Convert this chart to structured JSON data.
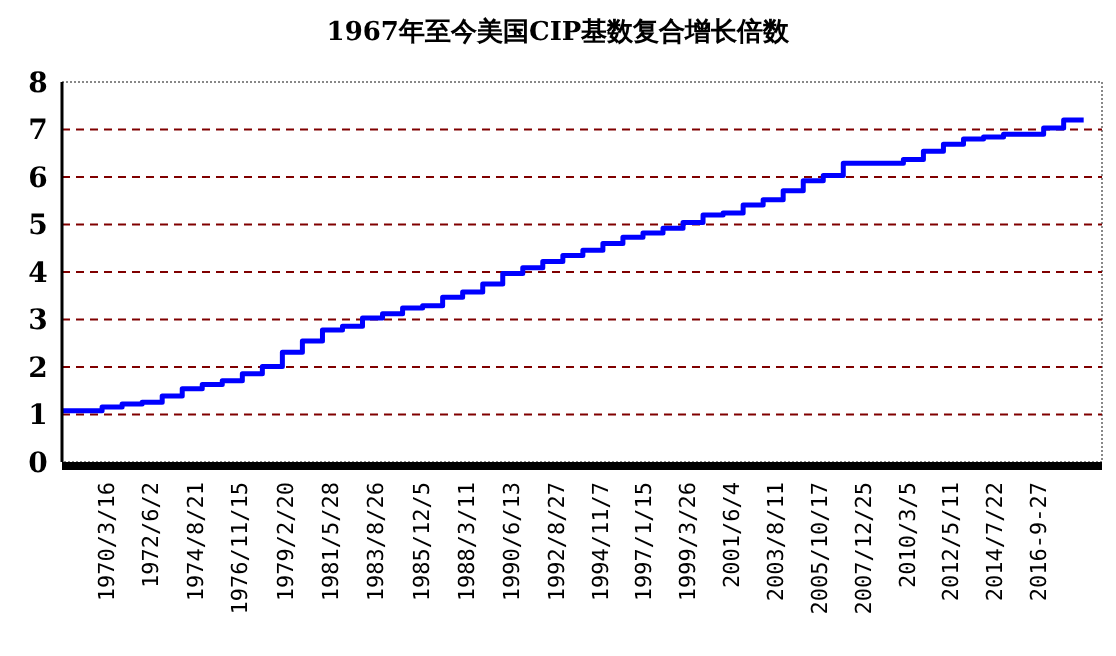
{
  "chart_data": {
    "type": "step",
    "title": "1967年至今美国CIP基数复合增长倍数",
    "x": [
      "1968",
      "1969",
      "1970",
      "1971",
      "1972",
      "1973",
      "1974",
      "1975",
      "1976",
      "1977",
      "1978",
      "1979",
      "1980",
      "1981",
      "1982",
      "1983",
      "1984",
      "1985",
      "1986",
      "1987",
      "1988",
      "1989",
      "1990",
      "1991",
      "1992",
      "1993",
      "1994",
      "1995",
      "1996",
      "1997",
      "1998",
      "1999",
      "2000",
      "2001",
      "2002",
      "2003",
      "2004",
      "2005",
      "2006",
      "2007",
      "2008",
      "2009",
      "2010",
      "2011",
      "2012",
      "2013",
      "2014",
      "2015",
      "2016",
      "2017",
      "2018",
      "2019"
    ],
    "series": [
      {
        "color": "#0000ff",
        "values": [
          1.08,
          1.08,
          1.16,
          1.22,
          1.26,
          1.39,
          1.54,
          1.63,
          1.71,
          1.86,
          2.01,
          2.31,
          2.55,
          2.78,
          2.86,
          3.03,
          3.12,
          3.24,
          3.29,
          3.47,
          3.58,
          3.75,
          3.97,
          4.09,
          4.22,
          4.35,
          4.46,
          4.6,
          4.73,
          4.82,
          4.92,
          5.04,
          5.2,
          5.24,
          5.41,
          5.52,
          5.71,
          5.92,
          6.03,
          6.29,
          6.29,
          6.29,
          6.37,
          6.54,
          6.69,
          6.8,
          6.84,
          6.9,
          6.9,
          7.03,
          7.2,
          7.2
        ]
      }
    ],
    "xlim": [
      "1968-01-01",
      "2019-12-01"
    ],
    "xticks": [
      {
        "value": "1970-03-16",
        "label": "1970/3/16"
      },
      {
        "value": "1972-06-02",
        "label": "1972/6/2"
      },
      {
        "value": "1974-08-21",
        "label": "1974/8/21"
      },
      {
        "value": "1976-11-15",
        "label": "1976/11/15"
      },
      {
        "value": "1979-02-20",
        "label": "1979/2/20"
      },
      {
        "value": "1981-05-28",
        "label": "1981/5/28"
      },
      {
        "value": "1983-08-26",
        "label": "1983/8/26"
      },
      {
        "value": "1985-12-05",
        "label": "1985/12/5"
      },
      {
        "value": "1988-03-11",
        "label": "1988/3/11"
      },
      {
        "value": "1990-06-13",
        "label": "1990/6/13"
      },
      {
        "value": "1992-08-27",
        "label": "1992/8/27"
      },
      {
        "value": "1994-11-07",
        "label": "1994/11/7"
      },
      {
        "value": "1997-01-15",
        "label": "1997/1/15"
      },
      {
        "value": "1999-03-26",
        "label": "1999/3/26"
      },
      {
        "value": "2001-06-04",
        "label": "2001/6/4"
      },
      {
        "value": "2003-08-11",
        "label": "2003/8/11"
      },
      {
        "value": "2005-10-17",
        "label": "2005/10/17"
      },
      {
        "value": "2007-12-25",
        "label": "2007/12/25"
      },
      {
        "value": "2010-03-05",
        "label": "2010/3/5"
      },
      {
        "value": "2012-05-11",
        "label": "2012/5/11"
      },
      {
        "value": "2014-07-22",
        "label": "2014/7/22"
      },
      {
        "value": "2016-09-27",
        "label": "2016-9-27"
      }
    ],
    "ylim": [
      0,
      8
    ],
    "yticks": [
      0,
      1,
      2,
      3,
      4,
      5,
      6,
      7,
      8
    ],
    "grid": "y",
    "line_style": "solid",
    "marker": "none"
  }
}
